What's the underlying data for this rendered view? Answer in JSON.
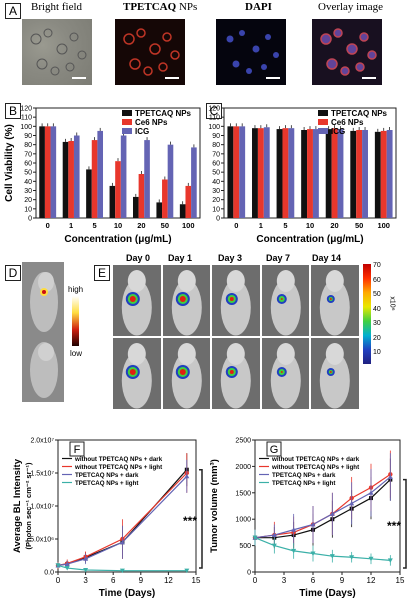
{
  "panels": {
    "A": "A",
    "B": "B",
    "C": "C",
    "D": "D",
    "E": "E",
    "F": "F",
    "G": "G"
  },
  "panel_a": {
    "titles": [
      "Bright field",
      "TPETCAQ",
      "NPs",
      "DAPI",
      "Overlay image"
    ]
  },
  "panel_d": {
    "high": "high",
    "low": "low"
  },
  "panel_e": {
    "days": [
      "Day 0",
      "Day 1",
      "Day 3",
      "Day 7",
      "Day 14"
    ],
    "colorbar_ticks": [
      "70",
      "60",
      "50",
      "40",
      "30",
      "20",
      "10"
    ],
    "colorbar_unit": "x10⁶"
  },
  "colors": {
    "black_series": "#111111",
    "red_series": "#e8372c",
    "blue_series": "#6464b4",
    "teal_series": "#3bb0a8"
  },
  "chart_data": [
    {
      "panel": "B",
      "type": "bar",
      "categories": [
        "0",
        "1",
        "5",
        "10",
        "20",
        "50",
        "100"
      ],
      "series": [
        {
          "name": "TPETCAQ NPs",
          "values": [
            100,
            83,
            53,
            35,
            23,
            17,
            15
          ]
        },
        {
          "name": "Ce6 NPs",
          "values": [
            100,
            84,
            85,
            62,
            48,
            42,
            35
          ]
        },
        {
          "name": "ICG",
          "values": [
            100,
            90,
            95,
            90,
            85,
            80,
            77
          ]
        }
      ],
      "ylim": [
        0,
        120
      ],
      "yticks": [
        "0",
        "10",
        "20",
        "30",
        "40",
        "50",
        "60",
        "70",
        "80",
        "90",
        "100",
        "110",
        "120"
      ],
      "ylabel": "Cell Viability (%)",
      "xlabel": "Concentration (μg/mL)"
    },
    {
      "panel": "C",
      "type": "bar",
      "categories": [
        "0",
        "1",
        "5",
        "10",
        "20",
        "50",
        "100"
      ],
      "series": [
        {
          "name": "TPETCAQ NPs",
          "values": [
            100,
            98,
            97,
            96,
            97,
            95,
            94
          ]
        },
        {
          "name": "Ce6 NPs",
          "values": [
            100,
            98,
            98,
            97,
            98,
            96,
            95
          ]
        },
        {
          "name": "ICG",
          "values": [
            100,
            99,
            98,
            97,
            97,
            96,
            96
          ]
        }
      ],
      "ylim": [
        0,
        120
      ],
      "yticks": [
        "0",
        "10",
        "20",
        "30",
        "40",
        "50",
        "60",
        "70",
        "80",
        "90",
        "100",
        "110",
        "120"
      ],
      "ylabel": "",
      "xlabel": "Concentration (μg/mL)"
    },
    {
      "panel": "F",
      "type": "line",
      "x": [
        0,
        1,
        3,
        7,
        14
      ],
      "series": [
        {
          "name": "without TPETCAQ NPs + dark",
          "values": [
            1.0,
            1.2,
            2.2,
            4.5,
            15.5
          ],
          "err": [
            0.5,
            0.5,
            0.8,
            2.5,
            2.5
          ]
        },
        {
          "name": "without TPETCAQ NPs + light",
          "values": [
            1.0,
            1.3,
            2.3,
            5.0,
            15.0
          ],
          "err": [
            0.5,
            0.6,
            0.8,
            3.0,
            3.0
          ]
        },
        {
          "name": "TPETCAQ NPs + dark",
          "values": [
            1.0,
            1.2,
            2.0,
            4.5,
            14.5
          ],
          "err": [
            0.4,
            0.5,
            0.8,
            2.5,
            2.5
          ]
        },
        {
          "name": "TPETCAQ NPs + light",
          "values": [
            1.0,
            0.6,
            0.3,
            0.2,
            0.2
          ],
          "err": [
            0.4,
            0.2,
            0.1,
            0.1,
            0.1
          ]
        }
      ],
      "xlim": [
        0,
        15
      ],
      "ylim": [
        0,
        20
      ],
      "xticks": [
        "0",
        "3",
        "6",
        "9",
        "12",
        "15"
      ],
      "yticks": [
        "0.0",
        "5.0x10⁶",
        "1.0x10⁷",
        "1.5x10⁷",
        "2.0x10⁷"
      ],
      "xlabel": "Time (Days)",
      "ylabel": "Average BL Intensity",
      "ylabel2": "(Photon sec⁻¹ cm⁻² sr⁻¹)",
      "significance": "***"
    },
    {
      "panel": "G",
      "type": "line",
      "x": [
        0,
        2,
        4,
        6,
        8,
        10,
        12,
        14
      ],
      "series": [
        {
          "name": "without TPETCAQ NPs + dark",
          "values": [
            650,
            650,
            700,
            800,
            1000,
            1200,
            1400,
            1750
          ],
          "err": [
            150,
            200,
            250,
            300,
            350,
            350,
            400,
            400
          ]
        },
        {
          "name": "without TPETCAQ NPs + light",
          "values": [
            650,
            700,
            750,
            900,
            1100,
            1400,
            1600,
            1850
          ],
          "err": [
            150,
            250,
            300,
            350,
            400,
            400,
            450,
            450
          ]
        },
        {
          "name": "TPETCAQ NPs + dark",
          "values": [
            650,
            700,
            800,
            900,
            1100,
            1300,
            1500,
            1800
          ],
          "err": [
            150,
            200,
            300,
            350,
            400,
            400,
            450,
            450
          ]
        },
        {
          "name": "TPETCAQ NPs + light",
          "values": [
            650,
            500,
            400,
            350,
            300,
            280,
            250,
            220
          ],
          "err": [
            150,
            150,
            150,
            150,
            120,
            100,
            100,
            100
          ]
        }
      ],
      "xlim": [
        0,
        15
      ],
      "ylim": [
        0,
        2500
      ],
      "xticks": [
        "0",
        "3",
        "6",
        "9",
        "12",
        "15"
      ],
      "yticks": [
        "0",
        "500",
        "1000",
        "1500",
        "2000",
        "2500"
      ],
      "xlabel": "Time (Days)",
      "ylabel": "Tumor volume (mm³)",
      "significance": "***"
    }
  ]
}
